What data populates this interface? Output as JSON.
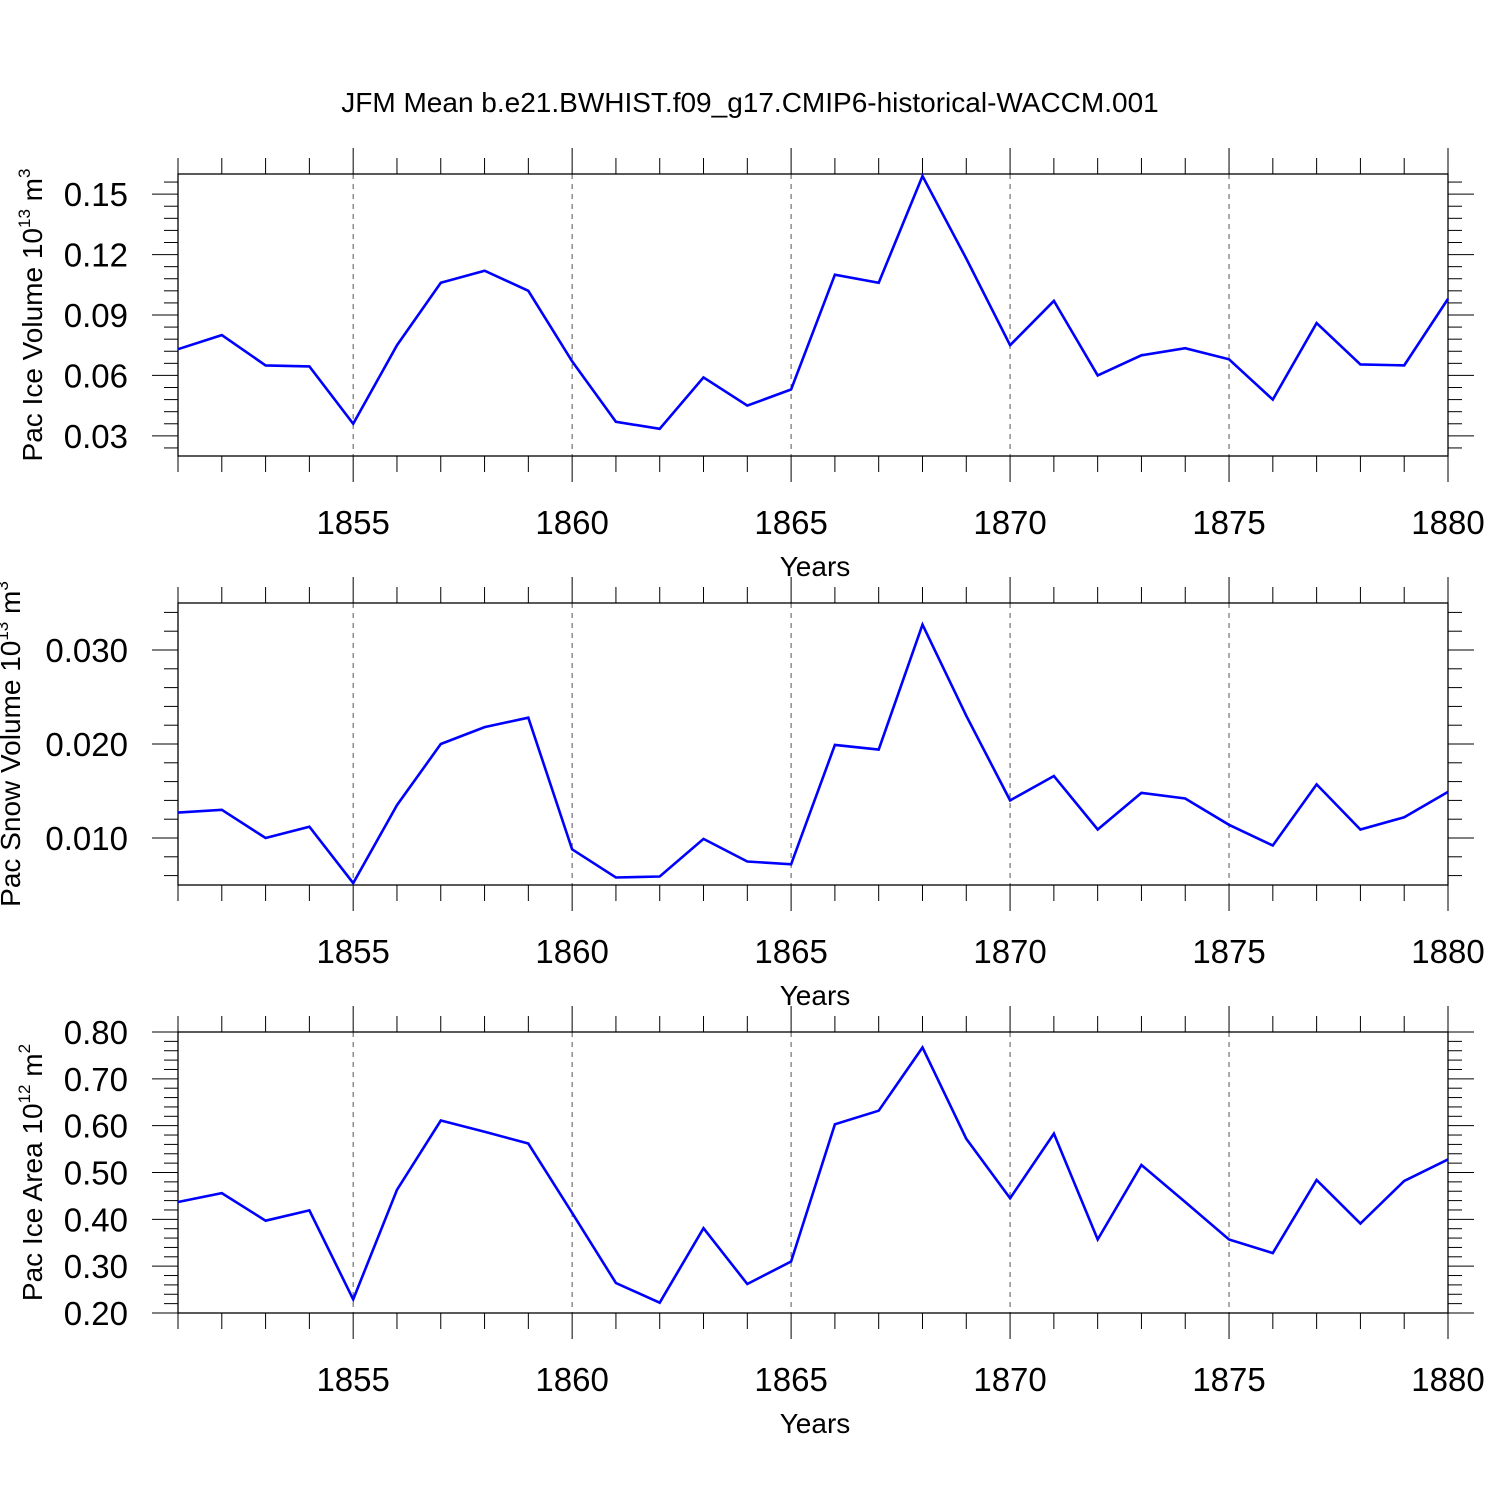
{
  "title": "JFM Mean b.e21.BWHIST.f09_g17.CMIP6-historical-WACCM.001",
  "colors": {
    "line": "#0000ff",
    "axis": "#000000",
    "grid": "#555555"
  },
  "chart_data": [
    {
      "type": "line",
      "xlabel": "Years",
      "ylabel": {
        "text": "Pac Ice Volume 10",
        "sup": "13",
        "unit": "m",
        "unit_sup": "3"
      },
      "xlim": [
        1851,
        1880
      ],
      "ylim": [
        0.02,
        0.16
      ],
      "x_ticks": [
        1855,
        1860,
        1865,
        1870,
        1875,
        1880
      ],
      "x_tick_labels": [
        "1855",
        "1860",
        "1865",
        "1870",
        "1875",
        "1880"
      ],
      "y_ticks": [
        0.03,
        0.06,
        0.09,
        0.12,
        0.15
      ],
      "y_tick_labels": [
        "0.03",
        "0.06",
        "0.09",
        "0.12",
        "0.15"
      ],
      "x": [
        1851,
        1852,
        1853,
        1854,
        1855,
        1856,
        1857,
        1858,
        1859,
        1860,
        1861,
        1862,
        1863,
        1864,
        1865,
        1866,
        1867,
        1868,
        1869,
        1870,
        1871,
        1872,
        1873,
        1874,
        1875,
        1876,
        1877,
        1878,
        1879,
        1880
      ],
      "values": [
        0.073,
        0.08,
        0.065,
        0.0645,
        0.036,
        0.075,
        0.106,
        0.112,
        0.102,
        0.067,
        0.037,
        0.0335,
        0.059,
        0.045,
        0.053,
        0.11,
        0.106,
        0.159,
        0.118,
        0.075,
        0.097,
        0.06,
        0.07,
        0.0735,
        0.068,
        0.048,
        0.086,
        0.0655,
        0.065,
        0.098
      ]
    },
    {
      "type": "line",
      "xlabel": "Years",
      "ylabel": {
        "text": "Pac Snow Volume 10",
        "sup": "13",
        "unit": "m",
        "unit_sup": "3"
      },
      "xlim": [
        1851,
        1880
      ],
      "ylim": [
        0.005,
        0.035
      ],
      "x_ticks": [
        1855,
        1860,
        1865,
        1870,
        1875,
        1880
      ],
      "x_tick_labels": [
        "1855",
        "1860",
        "1865",
        "1870",
        "1875",
        "1880"
      ],
      "y_ticks": [
        0.01,
        0.02,
        0.03
      ],
      "y_tick_labels": [
        "0.010",
        "0.020",
        "0.030"
      ],
      "x": [
        1851,
        1852,
        1853,
        1854,
        1855,
        1856,
        1857,
        1858,
        1859,
        1860,
        1861,
        1862,
        1863,
        1864,
        1865,
        1866,
        1867,
        1868,
        1869,
        1870,
        1871,
        1872,
        1873,
        1874,
        1875,
        1876,
        1877,
        1878,
        1879,
        1880
      ],
      "values": [
        0.0127,
        0.013,
        0.01,
        0.0112,
        0.0052,
        0.0135,
        0.02,
        0.0218,
        0.0228,
        0.0088,
        0.0058,
        0.0059,
        0.0099,
        0.0075,
        0.0072,
        0.0199,
        0.0194,
        0.0327,
        0.023,
        0.014,
        0.0166,
        0.0109,
        0.0148,
        0.0142,
        0.0114,
        0.0092,
        0.0157,
        0.0109,
        0.0122,
        0.0149
      ]
    },
    {
      "type": "line",
      "xlabel": "Years",
      "ylabel": {
        "text": "Pac Ice Area 10",
        "sup": "12",
        "unit": "m",
        "unit_sup": "2"
      },
      "xlim": [
        1851,
        1880
      ],
      "ylim": [
        0.2,
        0.8
      ],
      "x_ticks": [
        1855,
        1860,
        1865,
        1870,
        1875,
        1880
      ],
      "x_tick_labels": [
        "1855",
        "1860",
        "1865",
        "1870",
        "1875",
        "1880"
      ],
      "y_ticks": [
        0.2,
        0.3,
        0.4,
        0.5,
        0.6,
        0.7,
        0.8
      ],
      "y_tick_labels": [
        "0.20",
        "0.30",
        "0.40",
        "0.50",
        "0.60",
        "0.70",
        "0.80"
      ],
      "x": [
        1851,
        1852,
        1853,
        1854,
        1855,
        1856,
        1857,
        1858,
        1859,
        1860,
        1861,
        1862,
        1863,
        1864,
        1865,
        1866,
        1867,
        1868,
        1869,
        1870,
        1871,
        1872,
        1873,
        1874,
        1875,
        1876,
        1877,
        1878,
        1879,
        1880
      ],
      "values": [
        0.437,
        0.456,
        0.397,
        0.419,
        0.229,
        0.463,
        0.611,
        0.587,
        0.562,
        0.414,
        0.264,
        0.222,
        0.381,
        0.262,
        0.31,
        0.603,
        0.632,
        0.767,
        0.572,
        0.445,
        0.583,
        0.357,
        0.516,
        0.437,
        0.357,
        0.328,
        0.484,
        0.391,
        0.482,
        0.528
      ]
    }
  ]
}
